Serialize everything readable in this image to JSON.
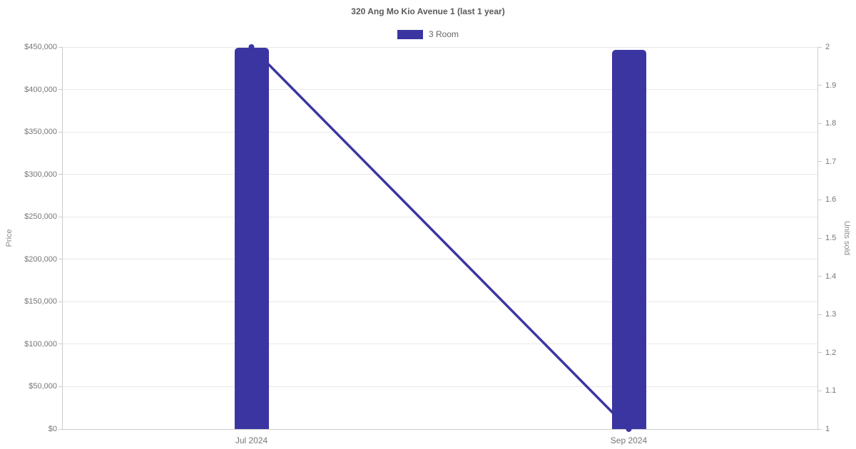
{
  "chart_data": {
    "type": "bar+line",
    "title": "320 Ang Mo Kio Avenue 1 (last 1 year)",
    "categories": [
      "Jul 2024",
      "Sep 2024"
    ],
    "series": [
      {
        "name": "3 Room",
        "type": "bar",
        "axis": "left",
        "values": [
          449000,
          447000
        ]
      },
      {
        "name": "3 Room",
        "type": "line",
        "axis": "right",
        "values": [
          2,
          1
        ]
      }
    ],
    "legend": [
      {
        "label": "3 Room",
        "color": "#3b35a2"
      }
    ],
    "legend_position": "top",
    "grid": "horizontal",
    "left_axis": {
      "label": "Price",
      "min": 0,
      "max": 450000,
      "step": 50000,
      "ticks": [
        "$0",
        "$50,000",
        "$100,000",
        "$150,000",
        "$200,000",
        "$250,000",
        "$300,000",
        "$350,000",
        "$400,000",
        "$450,000"
      ]
    },
    "right_axis": {
      "label": "Units sold",
      "min": 1,
      "max": 2,
      "step": 0.1,
      "ticks": [
        "1",
        "1.1",
        "1.2",
        "1.3",
        "1.4",
        "1.5",
        "1.6",
        "1.7",
        "1.8",
        "1.9",
        "2"
      ]
    },
    "colors": {
      "bar": "#3b35a2",
      "line": "#3b35a2",
      "grid": "#e8e8e8",
      "axis": "#cccccc",
      "tick_text": "#777777",
      "title_text": "#595959",
      "axis_title_text": "#8a8a8a"
    }
  }
}
